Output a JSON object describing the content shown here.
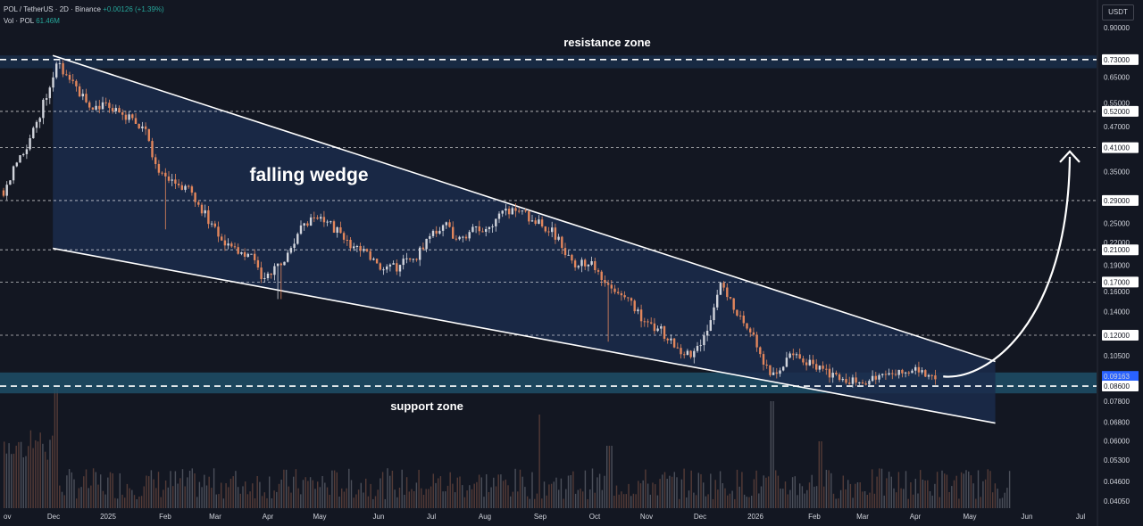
{
  "header": {
    "symbol_line": "POL / TetherUS · 2D · Binance",
    "change": "+0.00126 (+1.39%)",
    "volume_label": "Vol · POL",
    "volume_value": "61.46M"
  },
  "price_axis": {
    "unit": "USDT",
    "ticks": [
      "0.90000",
      "0.73000",
      "0.65000",
      "0.55000",
      "0.52000",
      "0.47000",
      "0.41000",
      "0.35000",
      "0.29000",
      "0.25000",
      "0.22000",
      "0.21000",
      "0.19000",
      "0.17000",
      "0.16000",
      "0.14000",
      "0.12000",
      "0.10500",
      "0.09163",
      "0.08600",
      "0.07800",
      "0.06800",
      "0.06000",
      "0.05300",
      "0.04600",
      "0.04050"
    ],
    "highlighted": [
      "0.73000",
      "0.52000",
      "0.41000",
      "0.29000",
      "0.21000",
      "0.17000",
      "0.12000",
      "0.08600"
    ],
    "current_price": "0.09163"
  },
  "time_axis": {
    "labels": [
      "ov",
      "Dec",
      "2025",
      "Feb",
      "Mar",
      "Apr",
      "May",
      "Jun",
      "Jul",
      "Aug",
      "Sep",
      "Oct",
      "Nov",
      "Dec",
      "2026",
      "Feb",
      "Mar",
      "Apr",
      "May",
      "Jun",
      "Jul"
    ]
  },
  "annotations": {
    "resistance": "resistance zone",
    "support": "support zone",
    "pattern": "falling wedge"
  },
  "chart_data": {
    "type": "candlestick",
    "title": "POL / TetherUS · 2D · Binance",
    "y_scale": "log",
    "ylim": [
      0.0395,
      1.0
    ],
    "horizontal_levels": [
      0.73,
      0.52,
      0.41,
      0.29,
      0.21,
      0.17,
      0.12,
      0.086
    ],
    "zones": {
      "resistance": [
        0.69,
        0.75
      ],
      "support": [
        0.082,
        0.094
      ]
    },
    "wedge": {
      "upper": [
        [
          "2024-12-01",
          0.75
        ],
        [
          "2026-06-28",
          0.101
        ]
      ],
      "lower": [
        [
          "2024-12-01",
          0.212
        ],
        [
          "2026-06-28",
          0.0675
        ]
      ]
    },
    "projection_target": 0.4,
    "close_path": [
      [
        "2024-11-01",
        0.31
      ],
      [
        "2024-11-10",
        0.38
      ],
      [
        "2024-11-20",
        0.46
      ],
      [
        "2024-11-28",
        0.6
      ],
      [
        "2024-12-02",
        0.68
      ],
      [
        "2024-12-05",
        0.72
      ],
      [
        "2024-12-10",
        0.64
      ],
      [
        "2024-12-18",
        0.58
      ],
      [
        "2024-12-25",
        0.53
      ],
      [
        "2025-01-03",
        0.55
      ],
      [
        "2025-01-10",
        0.51
      ],
      [
        "2025-01-20",
        0.49
      ],
      [
        "2025-01-28",
        0.44
      ],
      [
        "2025-02-03",
        0.34
      ],
      [
        "2025-02-12",
        0.33
      ],
      [
        "2025-02-22",
        0.31
      ],
      [
        "2025-03-03",
        0.27
      ],
      [
        "2025-03-12",
        0.23
      ],
      [
        "2025-03-22",
        0.21
      ],
      [
        "2025-04-01",
        0.205
      ],
      [
        "2025-04-07",
        0.175
      ],
      [
        "2025-04-14",
        0.18
      ],
      [
        "2025-04-22",
        0.2
      ],
      [
        "2025-05-01",
        0.24
      ],
      [
        "2025-05-10",
        0.26
      ],
      [
        "2025-05-20",
        0.245
      ],
      [
        "2025-05-30",
        0.22
      ],
      [
        "2025-06-10",
        0.205
      ],
      [
        "2025-06-20",
        0.18
      ],
      [
        "2025-06-30",
        0.19
      ],
      [
        "2025-07-10",
        0.2
      ],
      [
        "2025-07-20",
        0.24
      ],
      [
        "2025-07-28",
        0.245
      ],
      [
        "2025-08-05",
        0.225
      ],
      [
        "2025-08-15",
        0.24
      ],
      [
        "2025-08-25",
        0.25
      ],
      [
        "2025-09-01",
        0.265
      ],
      [
        "2025-09-10",
        0.275
      ],
      [
        "2025-09-20",
        0.255
      ],
      [
        "2025-10-01",
        0.24
      ],
      [
        "2025-10-09",
        0.205
      ],
      [
        "2025-10-13",
        0.192
      ],
      [
        "2025-10-25",
        0.19
      ],
      [
        "2025-11-04",
        0.17
      ],
      [
        "2025-11-15",
        0.155
      ],
      [
        "2025-11-25",
        0.135
      ],
      [
        "2025-12-05",
        0.125
      ],
      [
        "2025-12-15",
        0.112
      ],
      [
        "2025-12-25",
        0.103
      ],
      [
        "2026-01-04",
        0.125
      ],
      [
        "2026-01-12",
        0.172
      ],
      [
        "2026-01-20",
        0.145
      ],
      [
        "2026-01-30",
        0.125
      ],
      [
        "2026-02-06",
        0.1
      ],
      [
        "2026-02-14",
        0.092
      ],
      [
        "2026-02-22",
        0.105
      ],
      [
        "2026-03-02",
        0.103
      ],
      [
        "2026-03-12",
        0.097
      ],
      [
        "2026-03-22",
        0.093
      ],
      [
        "2026-04-01",
        0.09
      ],
      [
        "2026-04-10",
        0.087
      ],
      [
        "2026-04-18",
        0.091
      ],
      [
        "2026-04-28",
        0.094
      ],
      [
        "2026-05-08",
        0.097
      ],
      [
        "2026-05-16",
        0.094
      ],
      [
        "2026-05-24",
        0.0916
      ]
    ]
  },
  "colors": {
    "background": "#131722",
    "bull": "#d1d4dc",
    "bear": "#e2865c",
    "zone": "#1e3a5f",
    "wedge_fill": "#1b2b4b",
    "accent": "#2962ff"
  }
}
